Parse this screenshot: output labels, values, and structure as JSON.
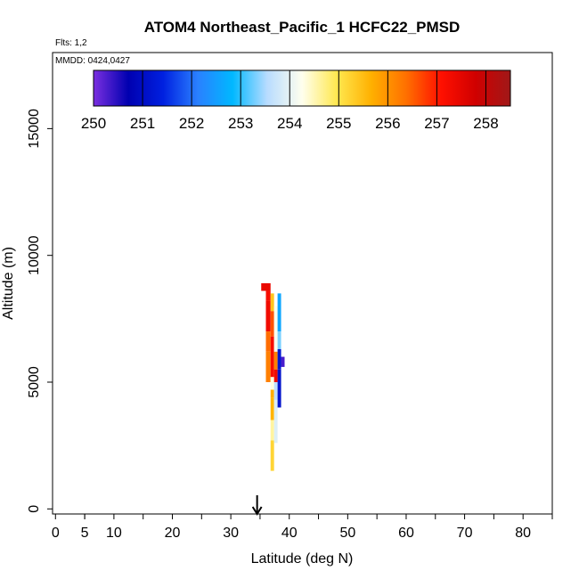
{
  "chart_data": {
    "type": "heatmap",
    "title": "ATOM4 Northeast_Pacific_1 HCFC22_PMSD",
    "flights_label": "Flts: 1,2",
    "dates_label": "MMDD: 0424,0427",
    "xlabel": "Latitude (deg N)",
    "ylabel": "Altitude (m)",
    "xlim": [
      -0.5,
      85
    ],
    "ylim": [
      -200,
      18000
    ],
    "x_ticks": [
      0,
      5,
      10,
      20,
      30,
      40,
      50,
      60,
      70,
      80
    ],
    "x_minor_ticks": [
      5,
      15,
      25,
      35,
      45,
      55,
      65,
      75,
      85
    ],
    "y_ticks": [
      0,
      5000,
      10000,
      15000
    ],
    "colorbar": {
      "ticks": [
        250,
        251,
        252,
        253,
        254,
        255,
        256,
        257,
        258
      ],
      "range": [
        250,
        258.5
      ],
      "stops": [
        "#7b2fe0",
        "#0000b0",
        "#0020e0",
        "#2a80ff",
        "#00b8ff",
        "#b8dcff",
        "#ffffee",
        "#ffe850",
        "#ffb000",
        "#ff7000",
        "#ff1000",
        "#d00000",
        "#a01818"
      ]
    },
    "marker": {
      "latitude": 34.5,
      "symbol": "arrow-down"
    },
    "grid": false,
    "columns": [
      {
        "x0": 35.2,
        "x1": 36.8,
        "segments": [
          {
            "y0": 8600,
            "y1": 8900,
            "value": 257.4
          }
        ]
      },
      {
        "x0": 36.0,
        "x1": 36.8,
        "segments": [
          {
            "y0": 8200,
            "y1": 8600,
            "value": 257.2
          },
          {
            "y0": 7000,
            "y1": 8200,
            "value": 257.3
          },
          {
            "y0": 6200,
            "y1": 7000,
            "value": 256.4
          },
          {
            "y0": 5000,
            "y1": 6200,
            "value": 256.2
          }
        ]
      },
      {
        "x0": 36.8,
        "x1": 37.4,
        "segments": [
          {
            "y0": 7800,
            "y1": 8500,
            "value": 255.4
          },
          {
            "y0": 6800,
            "y1": 7800,
            "value": 256.6
          },
          {
            "y0": 5200,
            "y1": 6800,
            "value": 257.2
          },
          {
            "y0": 4700,
            "y1": 5200,
            "value": 254.3
          },
          {
            "y0": 4400,
            "y1": 4700,
            "value": 255.7
          },
          {
            "y0": 3500,
            "y1": 4400,
            "value": 255.6
          },
          {
            "y0": 2700,
            "y1": 3500,
            "value": 254.6
          },
          {
            "y0": 1500,
            "y1": 2700,
            "value": 255.2
          }
        ]
      },
      {
        "x0": 37.4,
        "x1": 38.0,
        "segments": [
          {
            "y0": 6200,
            "y1": 8000,
            "value": 254.2
          },
          {
            "y0": 5500,
            "y1": 6200,
            "value": 256.2
          },
          {
            "y0": 5000,
            "y1": 5500,
            "value": 257.3
          },
          {
            "y0": 4300,
            "y1": 5000,
            "value": 253.6
          },
          {
            "y0": 2600,
            "y1": 4300,
            "value": 253.9
          }
        ]
      },
      {
        "x0": 38.0,
        "x1": 38.6,
        "segments": [
          {
            "y0": 7000,
            "y1": 8500,
            "value": 252.6
          },
          {
            "y0": 6300,
            "y1": 7000,
            "value": 253.3
          },
          {
            "y0": 5500,
            "y1": 6300,
            "value": 251.2
          },
          {
            "y0": 4000,
            "y1": 5500,
            "value": 251.1
          }
        ]
      },
      {
        "x0": 38.6,
        "x1": 39.2,
        "segments": [
          {
            "y0": 5600,
            "y1": 6000,
            "value": 250.3
          }
        ]
      }
    ]
  }
}
